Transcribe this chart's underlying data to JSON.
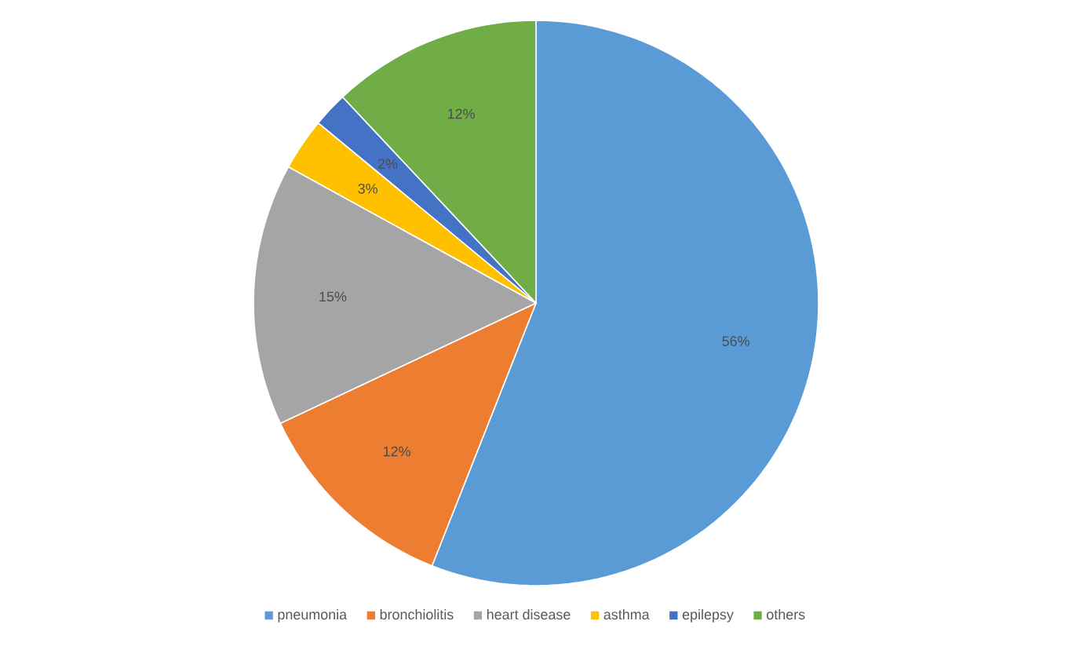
{
  "chart_data": {
    "type": "pie",
    "categories": [
      "pneumonia",
      "bronchiolitis",
      "heart disease",
      "asthma",
      "epilepsy",
      "others"
    ],
    "values": [
      56,
      12,
      15,
      3,
      2,
      12
    ],
    "colors": [
      "#5b9bd5",
      "#ed7d31",
      "#a5a5a5",
      "#ffc000",
      "#4472c4",
      "#70ad47"
    ],
    "value_labels": [
      "56%",
      "12%",
      "15%",
      "3%",
      "2%",
      "12%"
    ],
    "legend": "bottom"
  }
}
